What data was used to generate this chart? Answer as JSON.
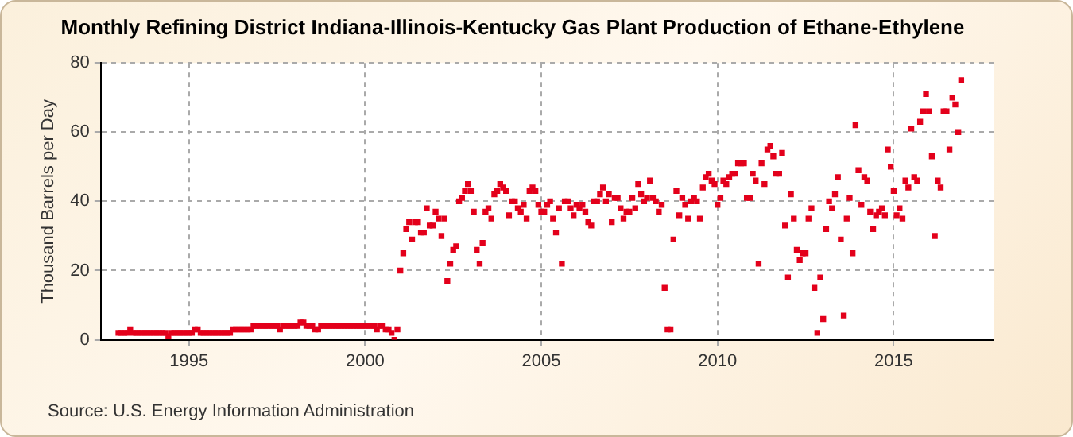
{
  "chart_data": {
    "type": "scatter",
    "title": "Monthly Refining District Indiana-Illinois-Kentucky Gas Plant Production of Ethane-Ethylene",
    "ylabel": "Thousand Barrels per Day",
    "annotations": [
      "Source: U.S. Energy Information Administration"
    ],
    "marker": "square",
    "grid": true,
    "legend": false,
    "xlim": [
      "1992-07",
      "2017-11"
    ],
    "xticks": [
      "1995",
      "2000",
      "2005",
      "2010",
      "2015"
    ],
    "ylim": [
      0,
      80
    ],
    "yticks": [
      0,
      20,
      40,
      60,
      80
    ],
    "x": [
      "1993-01",
      "1993-02",
      "1993-03",
      "1993-04",
      "1993-05",
      "1993-06",
      "1993-07",
      "1993-08",
      "1993-09",
      "1993-10",
      "1993-11",
      "1993-12",
      "1994-01",
      "1994-02",
      "1994-03",
      "1994-04",
      "1994-05",
      "1994-06",
      "1994-07",
      "1994-08",
      "1994-09",
      "1994-10",
      "1994-11",
      "1994-12",
      "1995-01",
      "1995-02",
      "1995-03",
      "1995-04",
      "1995-05",
      "1995-06",
      "1995-07",
      "1995-08",
      "1995-09",
      "1995-10",
      "1995-11",
      "1995-12",
      "1996-01",
      "1996-02",
      "1996-03",
      "1996-04",
      "1996-05",
      "1996-06",
      "1996-07",
      "1996-08",
      "1996-09",
      "1996-10",
      "1996-11",
      "1996-12",
      "1997-01",
      "1997-02",
      "1997-03",
      "1997-04",
      "1997-05",
      "1997-06",
      "1997-07",
      "1997-08",
      "1997-09",
      "1997-10",
      "1997-11",
      "1997-12",
      "1998-01",
      "1998-02",
      "1998-03",
      "1998-04",
      "1998-05",
      "1998-06",
      "1998-07",
      "1998-08",
      "1998-09",
      "1998-10",
      "1998-11",
      "1998-12",
      "1999-01",
      "1999-02",
      "1999-03",
      "1999-04",
      "1999-05",
      "1999-06",
      "1999-07",
      "1999-08",
      "1999-09",
      "1999-10",
      "1999-11",
      "1999-12",
      "2000-01",
      "2000-02",
      "2000-03",
      "2000-04",
      "2000-05",
      "2000-06",
      "2000-07",
      "2000-08",
      "2000-09",
      "2000-10",
      "2000-11",
      "2000-12",
      "2001-01",
      "2001-02",
      "2001-03",
      "2001-04",
      "2001-05",
      "2001-06",
      "2001-07",
      "2001-08",
      "2001-09",
      "2001-10",
      "2001-11",
      "2001-12",
      "2002-01",
      "2002-02",
      "2002-03",
      "2002-04",
      "2002-05",
      "2002-06",
      "2002-07",
      "2002-08",
      "2002-09",
      "2002-10",
      "2002-11",
      "2002-12",
      "2003-01",
      "2003-02",
      "2003-03",
      "2003-04",
      "2003-05",
      "2003-06",
      "2003-07",
      "2003-08",
      "2003-09",
      "2003-10",
      "2003-11",
      "2003-12",
      "2004-01",
      "2004-02",
      "2004-03",
      "2004-04",
      "2004-05",
      "2004-06",
      "2004-07",
      "2004-08",
      "2004-09",
      "2004-10",
      "2004-11",
      "2004-12",
      "2005-01",
      "2005-02",
      "2005-03",
      "2005-04",
      "2005-05",
      "2005-06",
      "2005-07",
      "2005-08",
      "2005-09",
      "2005-10",
      "2005-11",
      "2005-12",
      "2006-01",
      "2006-02",
      "2006-03",
      "2006-04",
      "2006-05",
      "2006-06",
      "2006-07",
      "2006-08",
      "2006-09",
      "2006-10",
      "2006-11",
      "2006-12",
      "2007-01",
      "2007-02",
      "2007-03",
      "2007-04",
      "2007-05",
      "2007-06",
      "2007-07",
      "2007-08",
      "2007-09",
      "2007-10",
      "2007-11",
      "2007-12",
      "2008-01",
      "2008-02",
      "2008-03",
      "2008-04",
      "2008-05",
      "2008-06",
      "2008-07",
      "2008-08",
      "2008-09",
      "2008-10",
      "2008-11",
      "2008-12",
      "2009-01",
      "2009-02",
      "2009-03",
      "2009-04",
      "2009-05",
      "2009-06",
      "2009-07",
      "2009-08",
      "2009-09",
      "2009-10",
      "2009-11",
      "2009-12",
      "2010-01",
      "2010-02",
      "2010-03",
      "2010-04",
      "2010-05",
      "2010-06",
      "2010-07",
      "2010-08",
      "2010-09",
      "2010-10",
      "2010-11",
      "2010-12",
      "2011-01",
      "2011-02",
      "2011-03",
      "2011-04",
      "2011-05",
      "2011-06",
      "2011-07",
      "2011-08",
      "2011-09",
      "2011-10",
      "2011-11",
      "2011-12",
      "2012-01",
      "2012-02",
      "2012-03",
      "2012-04",
      "2012-05",
      "2012-06",
      "2012-07",
      "2012-08",
      "2012-09",
      "2012-10",
      "2012-11",
      "2012-12",
      "2013-01",
      "2013-02",
      "2013-03",
      "2013-04",
      "2013-05",
      "2013-06",
      "2013-07",
      "2013-08",
      "2013-09",
      "2013-10",
      "2013-11",
      "2013-12",
      "2014-01",
      "2014-02",
      "2014-03",
      "2014-04",
      "2014-05",
      "2014-06",
      "2014-07",
      "2014-08",
      "2014-09",
      "2014-10",
      "2014-11",
      "2014-12",
      "2015-01",
      "2015-02",
      "2015-03",
      "2015-04",
      "2015-05",
      "2015-06",
      "2015-07",
      "2015-08",
      "2015-09",
      "2015-10",
      "2015-11",
      "2015-12",
      "2016-01",
      "2016-02",
      "2016-03",
      "2016-04",
      "2016-05",
      "2016-06",
      "2016-07",
      "2016-08",
      "2016-09",
      "2016-10",
      "2016-11",
      "2016-12"
    ],
    "series": [
      {
        "color": "#e3001b",
        "values": [
          2,
          2,
          2,
          2,
          3,
          2,
          2,
          2,
          2,
          2,
          2,
          2,
          2,
          2,
          2,
          2,
          2,
          1,
          2,
          2,
          2,
          2,
          2,
          2,
          2,
          2,
          3,
          3,
          2,
          2,
          2,
          2,
          2,
          2,
          2,
          2,
          2,
          2,
          2,
          3,
          3,
          3,
          3,
          3,
          3,
          3,
          4,
          4,
          4,
          4,
          4,
          4,
          4,
          4,
          4,
          3,
          4,
          4,
          4,
          4,
          4,
          4,
          5,
          5,
          4,
          4,
          4,
          3,
          3,
          4,
          4,
          4,
          4,
          4,
          4,
          4,
          4,
          4,
          4,
          4,
          4,
          4,
          4,
          4,
          4,
          4,
          4,
          4,
          3,
          4,
          4,
          3,
          3,
          2,
          0,
          3,
          20,
          25,
          32,
          34,
          29,
          34,
          34,
          31,
          31,
          38,
          33,
          33,
          37,
          35,
          30,
          35,
          17,
          22,
          26,
          27,
          40,
          41,
          43,
          45,
          43,
          37,
          26,
          22,
          28,
          37,
          38,
          35,
          42,
          43,
          45,
          44,
          43,
          36,
          40,
          40,
          38,
          37,
          39,
          35,
          43,
          44,
          43,
          39,
          37,
          37,
          39,
          40,
          35,
          31,
          38,
          22,
          40,
          40,
          38,
          36,
          39,
          38,
          39,
          37,
          34,
          33,
          40,
          40,
          42,
          44,
          40,
          42,
          34,
          41,
          41,
          38,
          35,
          37,
          37,
          41,
          38,
          45,
          42,
          40,
          41,
          46,
          41,
          40,
          37,
          39,
          15,
          3,
          3,
          29,
          43,
          36,
          41,
          39,
          35,
          40,
          41,
          40,
          35,
          44,
          47,
          48,
          46,
          45,
          39,
          41,
          46,
          45,
          47,
          48,
          48,
          51,
          51,
          51,
          41,
          41,
          48,
          46,
          22,
          51,
          45,
          55,
          56,
          53,
          48,
          48,
          54,
          33,
          18,
          42,
          35,
          26,
          23,
          25,
          25,
          35,
          38,
          15,
          2,
          18,
          6,
          32,
          40,
          38,
          42,
          47,
          29,
          7,
          35,
          41,
          25,
          62,
          49,
          39,
          47,
          46,
          37,
          32,
          36,
          37,
          38,
          36,
          55,
          50,
          43,
          36,
          38,
          35,
          46,
          44,
          61,
          47,
          46,
          63,
          66,
          71,
          66,
          53,
          30,
          46,
          44,
          66,
          66,
          55,
          70,
          68,
          60,
          75
        ]
      }
    ]
  }
}
